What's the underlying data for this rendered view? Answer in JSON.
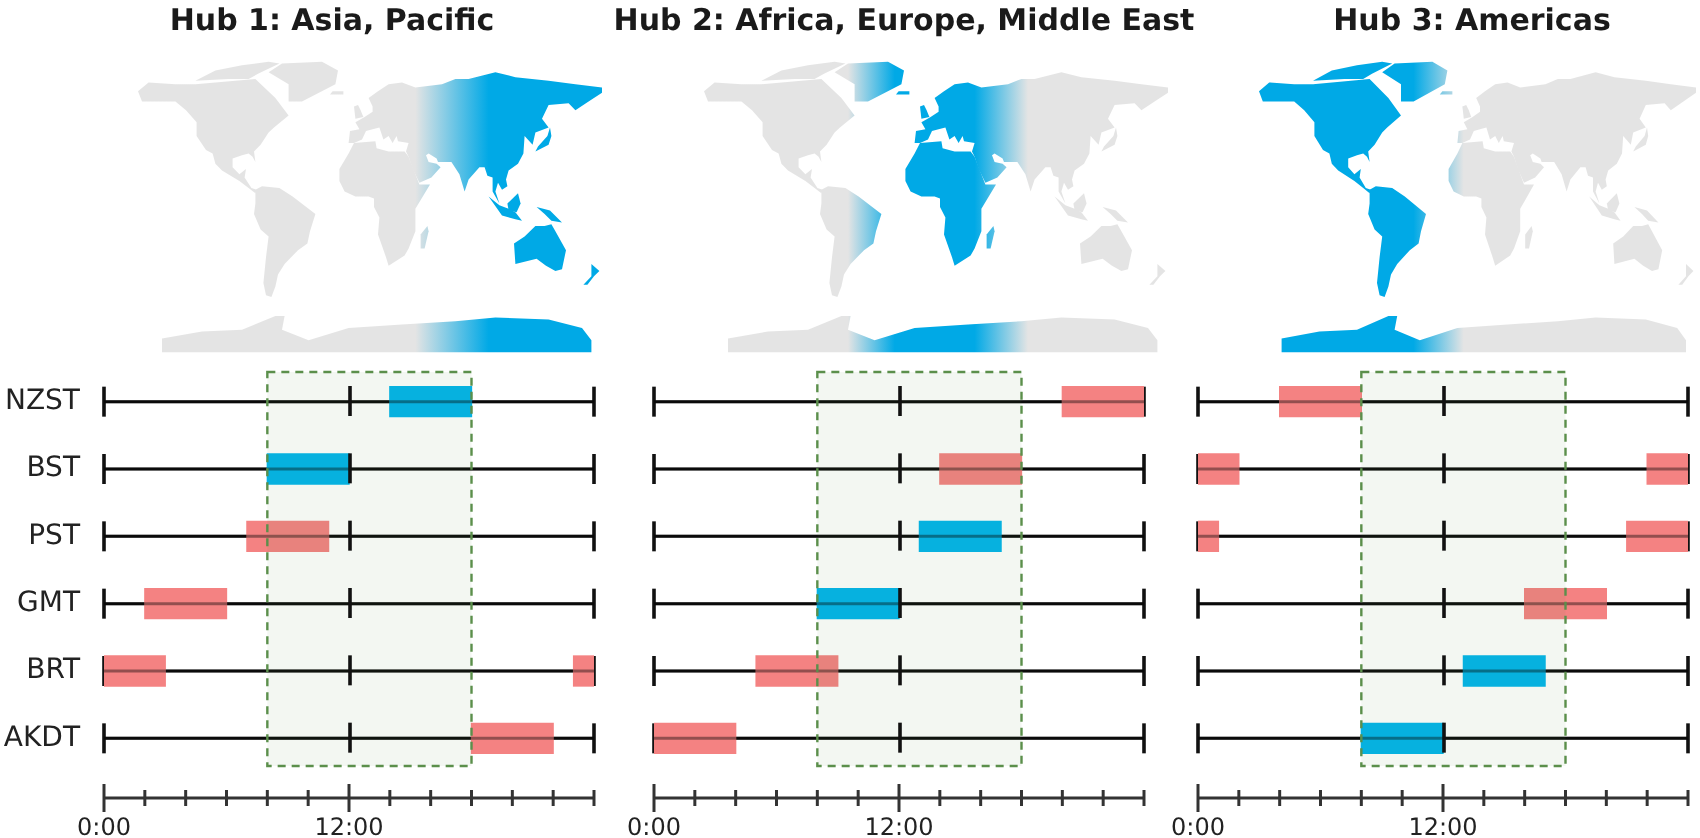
{
  "chart_data": [
    {
      "type": "bar",
      "orientation": "horizontal",
      "title": "Hub 1: Asia, Pacific",
      "categories": [
        "NZST",
        "BST",
        "PST",
        "GMT",
        "BRT",
        "AKDT"
      ],
      "series": [
        {
          "values": [
            4,
            4,
            4,
            4,
            3,
            4
          ],
          "base": [
            14,
            8,
            7,
            2,
            0,
            18
          ],
          "colors": [
            "#00b4eb",
            "#00b4eb",
            "#f48282",
            "#f48282",
            "#f48282",
            "#f48282"
          ]
        },
        {
          "values": [
            null,
            null,
            null,
            null,
            1,
            null
          ],
          "base": [
            null,
            null,
            null,
            null,
            23,
            null
          ],
          "colors": [
            null,
            null,
            null,
            null,
            "#f48282",
            null
          ]
        }
      ],
      "xlim": [
        0,
        24
      ],
      "xticks": [
        {
          "value": 0,
          "label": "0:00"
        },
        {
          "value": 2,
          "label": null
        },
        {
          "value": 4,
          "label": null
        },
        {
          "value": 6,
          "label": null
        },
        {
          "value": 8,
          "label": null
        },
        {
          "value": 10,
          "label": null
        },
        {
          "value": 12,
          "label": "12:00"
        },
        {
          "value": 14,
          "label": null
        },
        {
          "value": 16,
          "label": null
        },
        {
          "value": 18,
          "label": null
        },
        {
          "value": 20,
          "label": null
        },
        {
          "value": 22,
          "label": null
        },
        {
          "value": 24,
          "label": null
        }
      ],
      "grid": "y",
      "bands": [
        {
          "axis": "x",
          "from": 8,
          "to": 18,
          "color": "#5b8f4b"
        }
      ]
    },
    {
      "type": "bar",
      "orientation": "horizontal",
      "title": "Hub 2: Africa, Europe, Middle East",
      "categories": [
        null,
        null,
        null,
        null,
        null,
        null
      ],
      "series": [
        {
          "values": [
            4,
            4,
            4,
            4,
            4,
            4
          ],
          "base": [
            20,
            14,
            13,
            8,
            5,
            0
          ],
          "colors": [
            "#f48282",
            "#f48282",
            "#00b4eb",
            "#00b4eb",
            "#f48282",
            "#f48282"
          ]
        }
      ],
      "xlim": [
        0,
        24
      ],
      "xticks": [
        {
          "value": 0,
          "label": "0:00"
        },
        {
          "value": 2,
          "label": null
        },
        {
          "value": 4,
          "label": null
        },
        {
          "value": 6,
          "label": null
        },
        {
          "value": 8,
          "label": null
        },
        {
          "value": 10,
          "label": null
        },
        {
          "value": 12,
          "label": "12:00"
        },
        {
          "value": 14,
          "label": null
        },
        {
          "value": 16,
          "label": null
        },
        {
          "value": 18,
          "label": null
        },
        {
          "value": 20,
          "label": null
        },
        {
          "value": 22,
          "label": null
        },
        {
          "value": 24,
          "label": null
        }
      ],
      "grid": "y",
      "bands": [
        {
          "axis": "x",
          "from": 8,
          "to": 18,
          "color": "#5b8f4b"
        }
      ]
    },
    {
      "type": "bar",
      "orientation": "horizontal",
      "title": "Hub 3: Americas",
      "categories": [
        null,
        null,
        null,
        null,
        null,
        null
      ],
      "series": [
        {
          "values": [
            4,
            2,
            1,
            4,
            4,
            4
          ],
          "base": [
            4,
            0,
            0,
            16,
            13,
            8
          ],
          "colors": [
            "#f48282",
            "#f48282",
            "#f48282",
            "#f48282",
            "#00b4eb",
            "#00b4eb"
          ]
        },
        {
          "values": [
            null,
            2,
            3,
            null,
            null,
            null
          ],
          "base": [
            null,
            22,
            21,
            null,
            null,
            null
          ],
          "colors": [
            null,
            "#f48282",
            "#f48282",
            null,
            null,
            null
          ]
        }
      ],
      "xlim": [
        0,
        24
      ],
      "xticks": [
        {
          "value": 0,
          "label": "0:00"
        },
        {
          "value": 2,
          "label": null
        },
        {
          "value": 4,
          "label": null
        },
        {
          "value": 6,
          "label": null
        },
        {
          "value": 8,
          "label": null
        },
        {
          "value": 10,
          "label": null
        },
        {
          "value": 12,
          "label": "12:00"
        },
        {
          "value": 14,
          "label": null
        },
        {
          "value": 16,
          "label": null
        },
        {
          "value": 18,
          "label": null
        },
        {
          "value": 20,
          "label": null
        },
        {
          "value": 22,
          "label": null
        },
        {
          "value": 24,
          "label": null
        }
      ],
      "grid": "y",
      "bands": [
        {
          "axis": "x",
          "from": 8,
          "to": 18,
          "color": "#5b8f4b"
        }
      ]
    }
  ]
}
